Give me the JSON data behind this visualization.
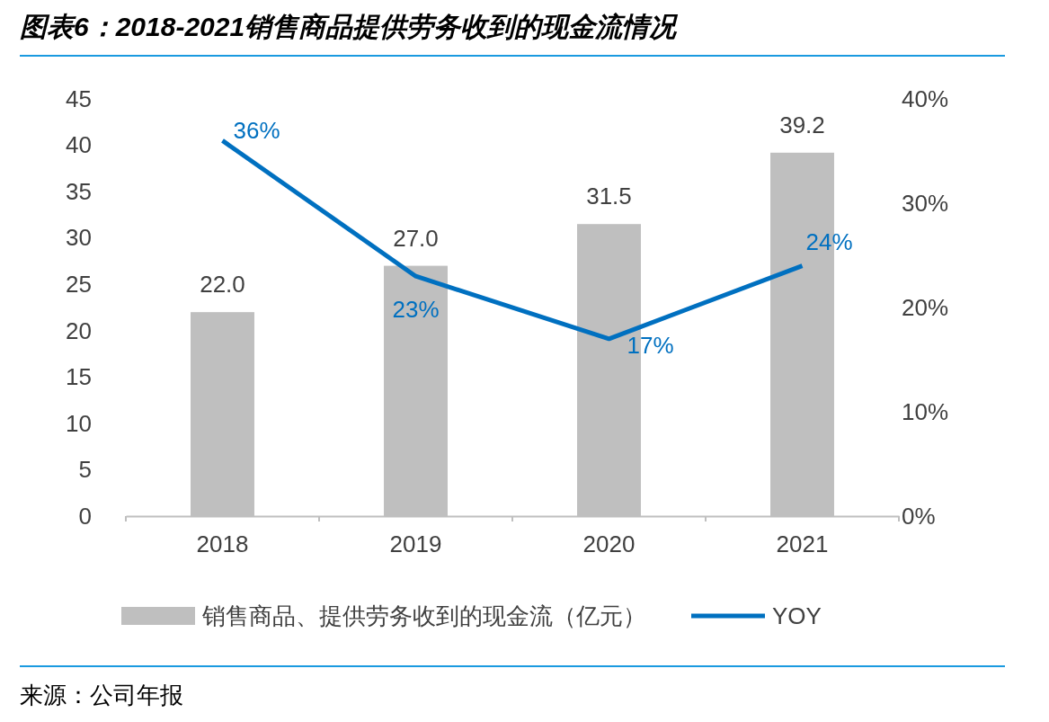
{
  "chart_data": {
    "type": "bar",
    "title": "图表6：2018-2021销售商品提供劳务收到的现金流情况",
    "categories": [
      "2018",
      "2019",
      "2020",
      "2021"
    ],
    "series": [
      {
        "name": "销售商品、提供劳务收到的现金流（亿元）",
        "color": "#bfbfbf",
        "values": [
          22.0,
          27.0,
          31.5,
          39.2
        ],
        "value_labels": [
          "22.0",
          "27.0",
          "31.5",
          "39.2"
        ]
      },
      {
        "name": "YOY",
        "type": "line",
        "axis": "y2",
        "color": "#0070c0",
        "values": [
          36,
          23,
          17,
          24
        ],
        "value_labels": [
          "36%",
          "23%",
          "17%",
          "24%"
        ]
      }
    ],
    "ylim": [
      0,
      45
    ],
    "yticks": [
      0,
      5,
      10,
      15,
      20,
      25,
      30,
      35,
      40,
      45
    ],
    "y2lim": [
      0,
      40
    ],
    "y2ticks": [
      {
        "value": 0,
        "label": "0%"
      },
      {
        "value": 10,
        "label": "10%"
      },
      {
        "value": 20,
        "label": "20%"
      },
      {
        "value": 30,
        "label": "30%"
      },
      {
        "value": 40,
        "label": "40%"
      }
    ],
    "grid": false,
    "legend": "bottom",
    "marker": "none",
    "line_style": "solid",
    "annotations": [
      "来源：公司年报"
    ]
  }
}
